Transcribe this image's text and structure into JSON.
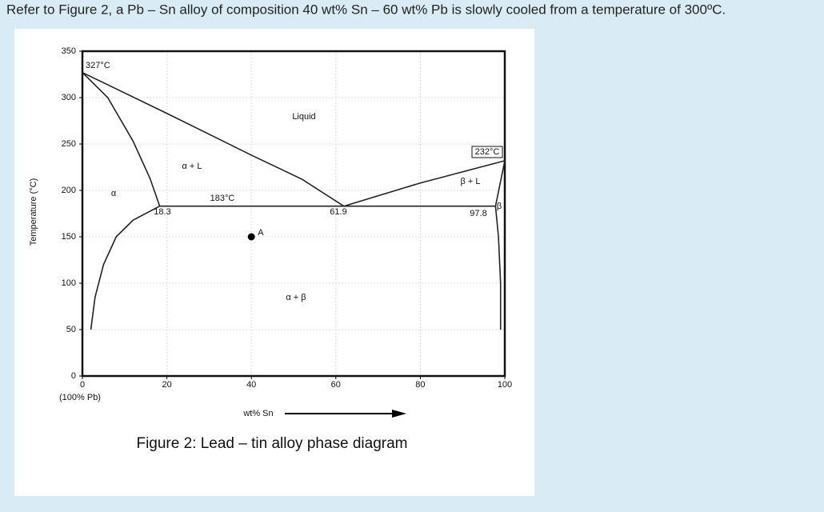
{
  "question": "Refer to Figure 2, a Pb – Sn alloy of composition 40 wt% Sn – 60 wt% Pb is slowly cooled from a temperature of 300ºC.",
  "caption": "Figure 2: Lead – tin alloy phase diagram",
  "chart_data": {
    "type": "line",
    "x_label": "wt% Sn",
    "y_label": "Temperature (°C)",
    "origin_note": "(100% Pb)",
    "xlim": [
      0,
      100
    ],
    "ylim": [
      0,
      350
    ],
    "xticks": [
      0,
      20,
      40,
      60,
      80,
      100
    ],
    "yticks": [
      0,
      50,
      100,
      150,
      200,
      250,
      300,
      350
    ],
    "grid": true,
    "series": [
      {
        "color": "#222222",
        "x": [
          0,
          20,
          40,
          52,
          61.9
        ],
        "values": [
          327,
          283,
          238,
          212,
          183
        ]
      },
      {
        "color": "#222222",
        "x": [
          61.9,
          80,
          100
        ],
        "values": [
          183,
          208,
          232
        ]
      },
      {
        "color": "#222222",
        "x": [
          0,
          6,
          12,
          16,
          18.3
        ],
        "values": [
          327,
          300,
          253,
          213,
          183
        ]
      },
      {
        "color": "#222222",
        "x": [
          18.3,
          12,
          8,
          5,
          3,
          2
        ],
        "values": [
          183,
          168,
          150,
          120,
          85,
          50
        ]
      },
      {
        "color": "#222222",
        "x": [
          18.3,
          97.8
        ],
        "values": [
          183,
          183
        ]
      },
      {
        "color": "#222222",
        "x": [
          97.8,
          100
        ],
        "values": [
          183,
          232
        ]
      },
      {
        "color": "#222222",
        "x": [
          97.8,
          98.5,
          99,
          99
        ],
        "values": [
          183,
          150,
          100,
          50
        ]
      }
    ],
    "annotations": [
      "327°C",
      "Liquid",
      "α + L",
      "α",
      "183°C",
      "18.3",
      "61.9",
      "232°C",
      "β + L",
      "97.8",
      "β",
      "α + β"
    ],
    "point": {
      "label": "A",
      "x": 40,
      "y": 150
    }
  }
}
